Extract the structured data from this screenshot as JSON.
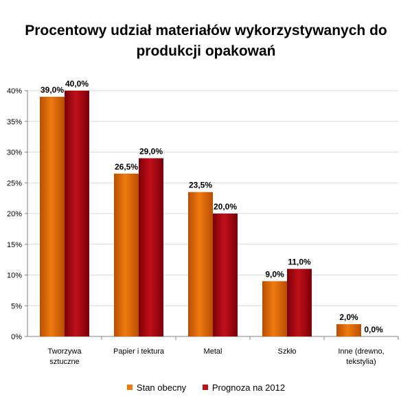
{
  "chart_data": {
    "type": "bar",
    "title": [
      "Procentowy udział materiałów wykorzystywanych do",
      "produkcji opakowań"
    ],
    "categories": [
      [
        "Tworzywa",
        "sztuczne"
      ],
      [
        "Papier i tektura"
      ],
      [
        "Metal"
      ],
      [
        "Szkło"
      ],
      [
        "Inne (drewno,",
        "tekstylia)"
      ]
    ],
    "series": [
      {
        "name": "Stan obecny",
        "values": [
          39.0,
          26.5,
          23.5,
          9.0,
          2.0
        ],
        "labels": [
          "39,0%",
          "26,5%",
          "23,5%",
          "9,0%",
          "2,0%"
        ]
      },
      {
        "name": "Prognoza na 2012",
        "values": [
          40.0,
          29.0,
          20.0,
          11.0,
          0.0
        ],
        "labels": [
          "40,0%",
          "29,0%",
          "20,0%",
          "11,0%",
          "0,0%"
        ]
      }
    ],
    "ylim": [
      0,
      40
    ],
    "yticks": [
      "0%",
      "5%",
      "10%",
      "15%",
      "20%",
      "25%",
      "30%",
      "35%",
      "40%"
    ],
    "grid": true,
    "legend_position": "bottom",
    "colors": {
      "series1": "#F07A10",
      "series1_dark": "#B84E00",
      "series2": "#C0101A",
      "series2_dark": "#7A0008",
      "axis": "#808080",
      "grid": "#d9d9d9"
    }
  }
}
